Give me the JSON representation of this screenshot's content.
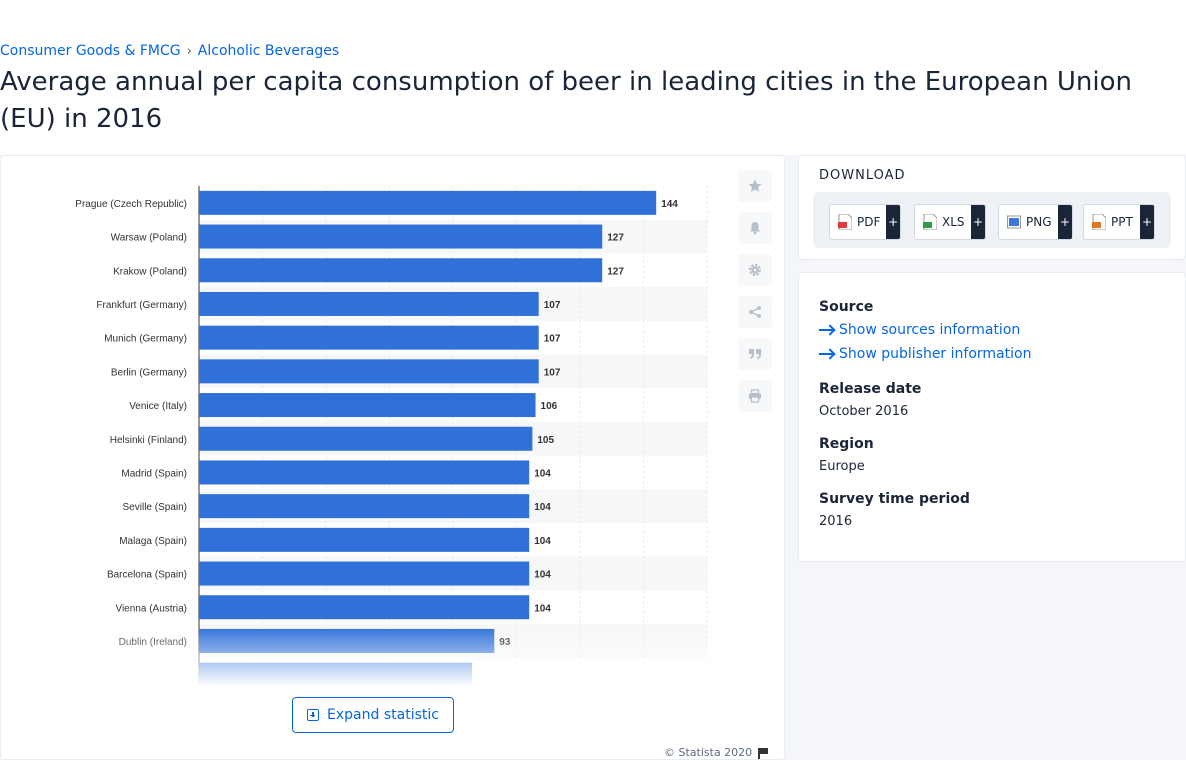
{
  "breadcrumb": {
    "items": [
      "Consumer Goods & FMCG",
      "Alcoholic Beverages"
    ],
    "separator": "›"
  },
  "page_title": "Average annual per capita consumption of beer in leading cities in the European Union (EU) in 2016",
  "chart_card": {
    "expand_label": "Expand statistic",
    "copyright": "© Statista 2020",
    "side_icons": [
      "star-icon",
      "bell-icon",
      "gear-icon",
      "share-icon",
      "quote-icon",
      "print-icon"
    ]
  },
  "download": {
    "title": "DOWNLOAD",
    "buttons": [
      {
        "label": "PDF",
        "plus": "+",
        "color": "#e03a3a"
      },
      {
        "label": "XLS",
        "plus": "+",
        "color": "#2e9a4a"
      },
      {
        "label": "PNG",
        "plus": "+",
        "color": "#3a7bd5"
      },
      {
        "label": "PPT",
        "plus": "+",
        "color": "#e0782a"
      }
    ]
  },
  "info": {
    "source_heading": "Source",
    "show_sources": "Show sources information",
    "show_publisher": "Show publisher information",
    "release_heading": "Release date",
    "release_value": "October 2016",
    "region_heading": "Region",
    "region_value": "Europe",
    "survey_heading": "Survey time period",
    "survey_value": "2016"
  },
  "colors": {
    "bar": "#2f70d9",
    "accent": "#0666e5",
    "text": "#1b2538"
  },
  "chart_data": {
    "type": "bar",
    "orientation": "horizontal",
    "categories": [
      "Prague (Czech Republic)",
      "Warsaw (Poland)",
      "Krakow (Poland)",
      "Frankfurt (Germany)",
      "Munich (Germany)",
      "Berlin (Germany)",
      "Venice (Italy)",
      "Helsinki (Finland)",
      "Madrid (Spain)",
      "Seville (Spain)",
      "Malaga (Spain)",
      "Barcelona (Spain)",
      "Vienna (Austria)",
      "Dublin (Ireland)"
    ],
    "values": [
      144,
      127,
      127,
      107,
      107,
      107,
      106,
      105,
      104,
      104,
      104,
      104,
      104,
      93
    ],
    "partial_next_value": 86,
    "xlim": [
      0,
      160
    ],
    "grid": true,
    "data_labels": true
  }
}
